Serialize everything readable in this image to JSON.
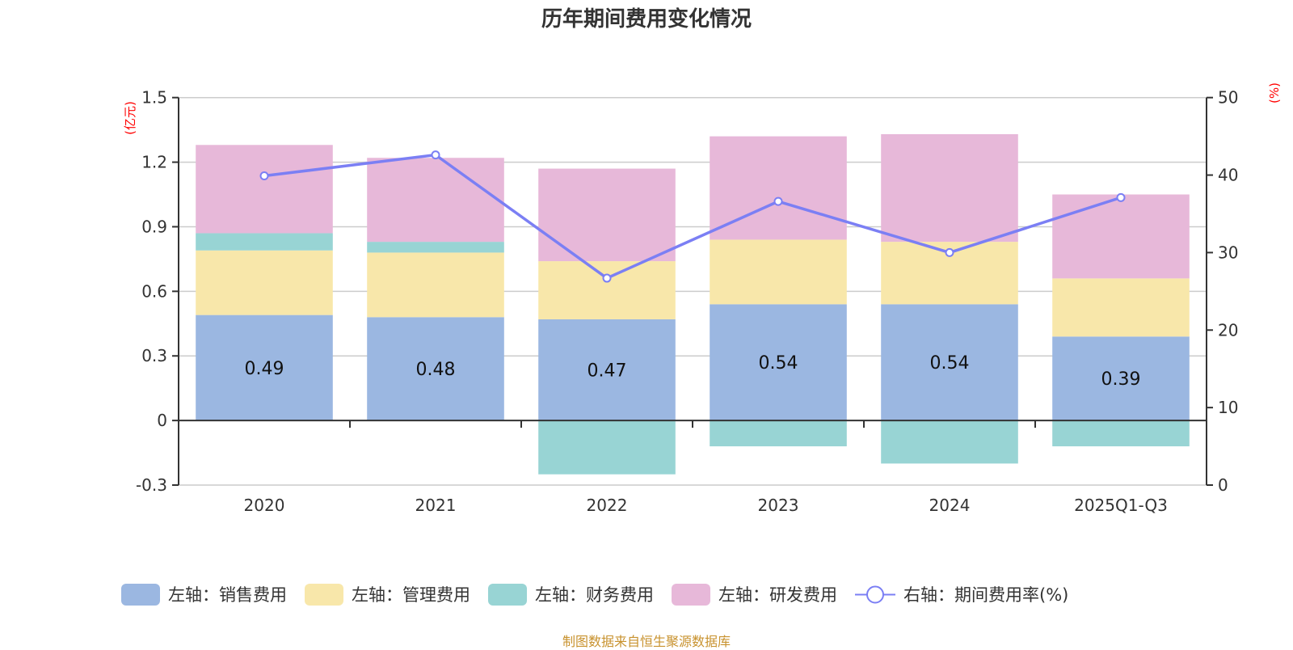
{
  "chart_data": {
    "type": "bar",
    "stacked": true,
    "title": "历年期间费用变化情况",
    "categories": [
      "2020",
      "2021",
      "2022",
      "2023",
      "2024",
      "2025Q1-Q3"
    ],
    "left_axis": {
      "label": "(亿元)",
      "ylim": [
        -0.3,
        1.5
      ],
      "ticks": [
        -0.3,
        0,
        0.3,
        0.6,
        0.9,
        1.2,
        1.5
      ],
      "tick_labels": [
        "-0.3",
        "0",
        "0.3",
        "0.6",
        "0.9",
        "1.2",
        "1.5"
      ]
    },
    "right_axis": {
      "label": "(%)",
      "ylim": [
        0,
        50
      ],
      "ticks": [
        0,
        10,
        20,
        30,
        40,
        50
      ],
      "tick_labels": [
        "0",
        "10",
        "20",
        "30",
        "40",
        "50"
      ]
    },
    "grid": true,
    "series": [
      {
        "name": "左轴：销售费用",
        "axis": "left",
        "kind": "bar",
        "color": "#9BB7E1",
        "values": [
          0.49,
          0.48,
          0.47,
          0.54,
          0.54,
          0.39
        ],
        "show_labels": true,
        "labels": [
          "0.49",
          "0.48",
          "0.47",
          "0.54",
          "0.54",
          "0.39"
        ]
      },
      {
        "name": "左轴：管理费用",
        "axis": "left",
        "kind": "bar",
        "color": "#F8E7AA",
        "values": [
          0.3,
          0.3,
          0.27,
          0.3,
          0.29,
          0.27
        ]
      },
      {
        "name": "左轴：财务费用",
        "axis": "left",
        "kind": "bar",
        "color": "#98D4D4",
        "values": [
          0.08,
          0.05,
          -0.25,
          -0.12,
          -0.2,
          -0.12
        ]
      },
      {
        "name": "左轴：研发费用",
        "axis": "left",
        "kind": "bar",
        "color": "#E7B8D9",
        "values": [
          0.41,
          0.39,
          0.43,
          0.48,
          0.5,
          0.39
        ]
      },
      {
        "name": "右轴：期间费用率(%)",
        "axis": "right",
        "kind": "line",
        "color": "#7B7FF4",
        "values": [
          39.9,
          42.6,
          26.7,
          36.6,
          30.0,
          37.1
        ]
      }
    ],
    "legend_position": "bottom"
  },
  "footer": {
    "source": "制图数据来自恒生聚源数据库"
  }
}
